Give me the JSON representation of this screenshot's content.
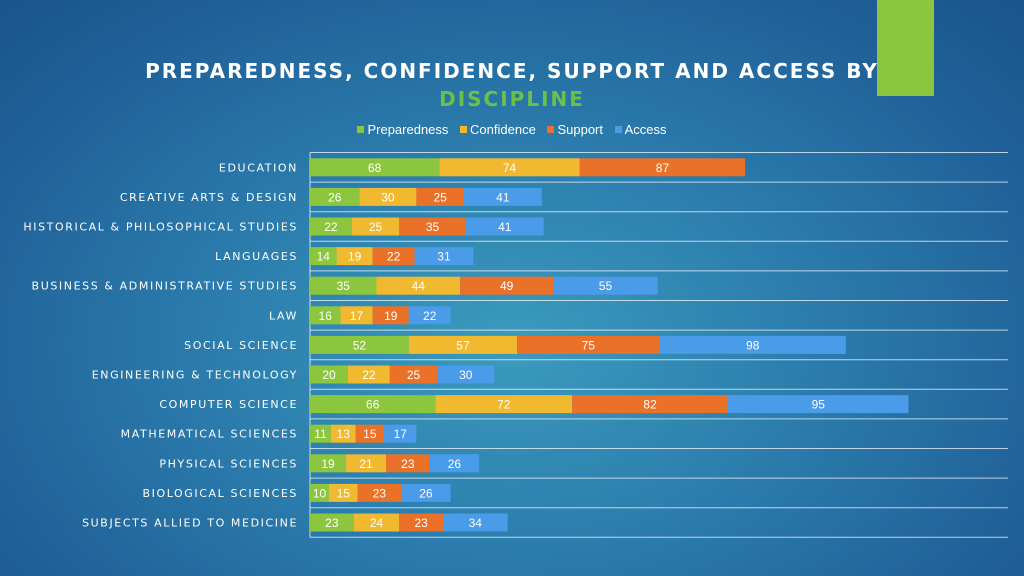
{
  "chart_data": {
    "type": "bar",
    "orientation": "horizontal",
    "stacked": true,
    "title_line1": "PREPAREDNESS, CONFIDENCE, SUPPORT AND ACCESS BY",
    "title_line2": "DISCIPLINE",
    "legend_position": "top",
    "grid": true,
    "categories": [
      "EDUCATION",
      "CREATIVE ARTS & DESIGN",
      "HISTORICAL & PHILOSOPHICAL STUDIES",
      "LANGUAGES",
      "BUSINESS & ADMINISTRATIVE STUDIES",
      "LAW",
      "SOCIAL SCIENCE",
      "ENGINEERING & TECHNOLOGY",
      "COMPUTER SCIENCE",
      "MATHEMATICAL SCIENCES",
      "PHYSICAL SCIENCES",
      "BIOLOGICAL SCIENCES",
      "SUBJECTS ALLIED TO MEDICINE"
    ],
    "series": [
      {
        "name": "Preparedness",
        "color": "#8cc63f",
        "values": [
          68,
          26,
          22,
          14,
          35,
          16,
          52,
          20,
          66,
          11,
          19,
          10,
          23
        ]
      },
      {
        "name": "Confidence",
        "color": "#f0b930",
        "values": [
          74,
          30,
          25,
          19,
          44,
          17,
          57,
          22,
          72,
          13,
          21,
          15,
          24
        ]
      },
      {
        "name": "Support",
        "color": "#ea7128",
        "values": [
          87,
          25,
          35,
          22,
          49,
          19,
          75,
          25,
          82,
          15,
          23,
          23,
          23
        ]
      },
      {
        "name": "Access",
        "color": "#4a9be8",
        "values": [
          null,
          41,
          41,
          31,
          55,
          22,
          98,
          30,
          95,
          17,
          26,
          26,
          34
        ]
      }
    ]
  }
}
